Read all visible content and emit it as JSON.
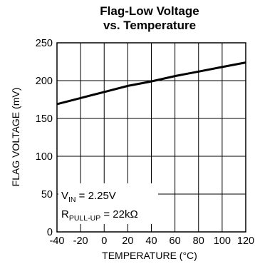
{
  "chart_data": {
    "type": "line",
    "title_line1": "Flag-Low Voltage",
    "title_line2": "vs. Temperature",
    "xlabel": "TEMPERATURE (°C)",
    "ylabel": "FLAG VOLTAGE (mV)",
    "xlim": [
      -40,
      120
    ],
    "ylim": [
      0,
      250
    ],
    "x_ticks": [
      -40,
      -20,
      0,
      20,
      40,
      60,
      80,
      100,
      120
    ],
    "y_ticks": [
      0,
      50,
      100,
      150,
      200,
      250
    ],
    "grid": true,
    "series": [
      {
        "x": [
          -40,
          -20,
          0,
          20,
          40,
          60,
          80,
          100,
          120
        ],
        "values": [
          169,
          177,
          185,
          193,
          199,
          206,
          212,
          218,
          224
        ]
      }
    ],
    "annotation": {
      "line1_main": "V",
      "line1_sub": "IN",
      "line1_rest": " = 2.25V",
      "line2_main": "R",
      "line2_sub": "PULL-UP",
      "line2_rest": " = 22kΩ"
    }
  }
}
